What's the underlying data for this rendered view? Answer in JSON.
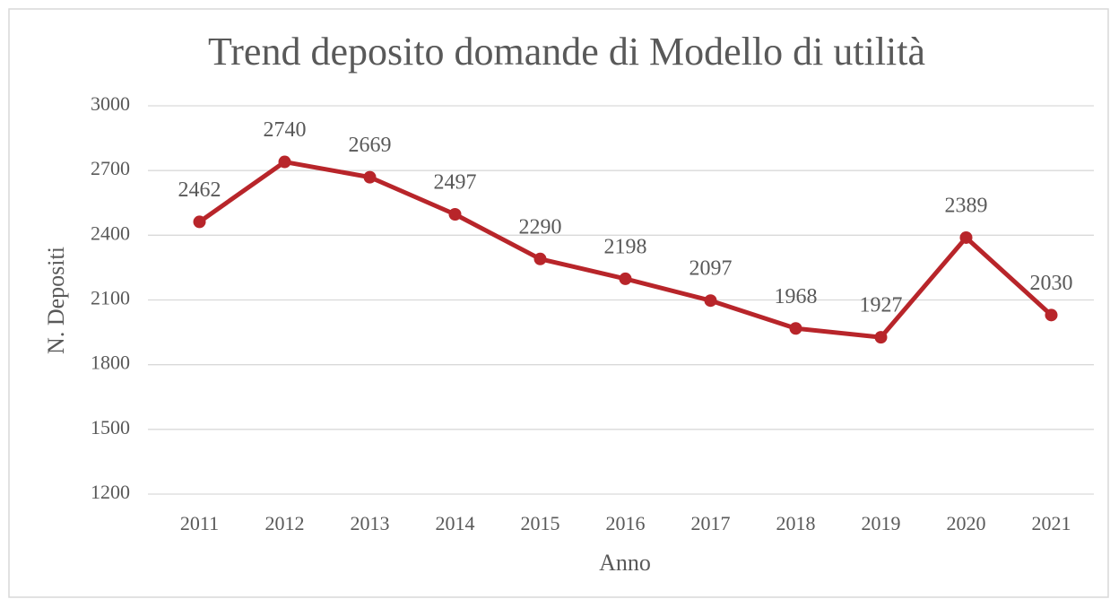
{
  "chart_data": {
    "type": "line",
    "title": "Trend deposito domande di Modello di utilità",
    "x_label": "Anno",
    "y_label": "N. Depositi",
    "categories": [
      "2011",
      "2012",
      "2013",
      "2014",
      "2015",
      "2016",
      "2017",
      "2018",
      "2019",
      "2020",
      "2021"
    ],
    "series": [
      {
        "name": "N. Depositi",
        "color": "#b8252a",
        "values": [
          2462,
          2740,
          2669,
          2497,
          2290,
          2198,
          2097,
          1968,
          1927,
          2389,
          2030
        ]
      }
    ],
    "ylim": [
      1200,
      3000
    ],
    "yticks": [
      1200,
      1500,
      1800,
      2100,
      2400,
      2700,
      3000
    ],
    "grid": true
  }
}
